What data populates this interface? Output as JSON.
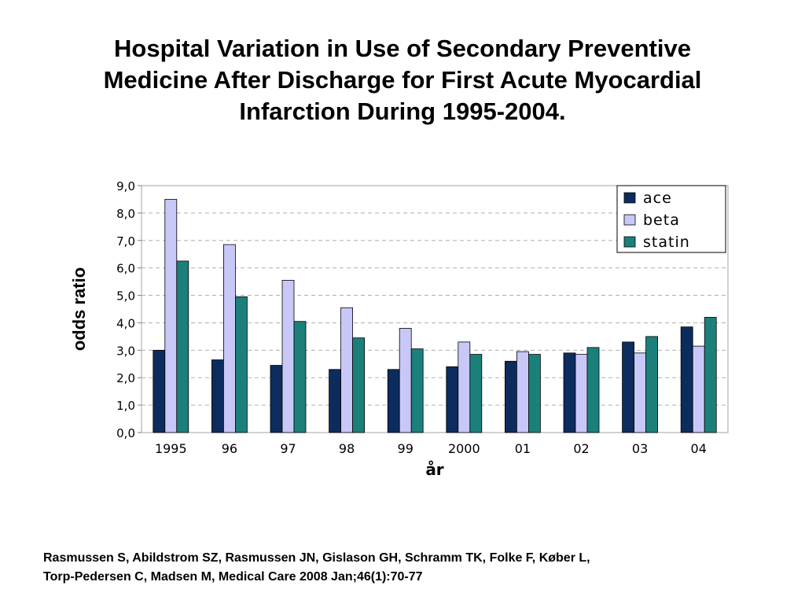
{
  "slide": {
    "title_lines": [
      "Hospital Variation in Use of Secondary Preventive",
      "Medicine After Discharge for First Acute Myocardial",
      "Infarction During 1995-2004."
    ],
    "citation_lines": [
      "Rasmussen S, Abildstrom SZ, Rasmussen JN, Gislason GH, Schramm TK, Folke F, Køber L,",
      "Torp-Pedersen C, Madsen M, Medical Care 2008 Jan;46(1):70-77"
    ]
  },
  "chart_data": {
    "type": "bar",
    "title": "",
    "xlabel": "år",
    "ylabel": "odds ratio",
    "ylim": [
      0,
      9
    ],
    "yticks": [
      "0,0",
      "1,0",
      "2,0",
      "3,0",
      "4,0",
      "5,0",
      "6,0",
      "7,0",
      "8,0",
      "9,0"
    ],
    "grid": "horizontal dashed",
    "legend_position": "top-right",
    "categories": [
      "1995",
      "96",
      "97",
      "98",
      "99",
      "2000",
      "01",
      "02",
      "03",
      "04"
    ],
    "series": [
      {
        "name": "ace",
        "color": "#0d2c5e",
        "values": [
          3.0,
          2.65,
          2.45,
          2.3,
          2.3,
          2.4,
          2.6,
          2.9,
          3.3,
          3.85
        ]
      },
      {
        "name": "beta",
        "color": "#c8c8f8",
        "values": [
          8.5,
          6.85,
          5.55,
          4.55,
          3.8,
          3.3,
          2.95,
          2.85,
          2.9,
          3.15
        ]
      },
      {
        "name": "statin",
        "color": "#1c807a",
        "values": [
          6.25,
          4.95,
          4.05,
          3.45,
          3.05,
          2.85,
          2.85,
          3.1,
          3.5,
          4.2
        ]
      }
    ]
  }
}
